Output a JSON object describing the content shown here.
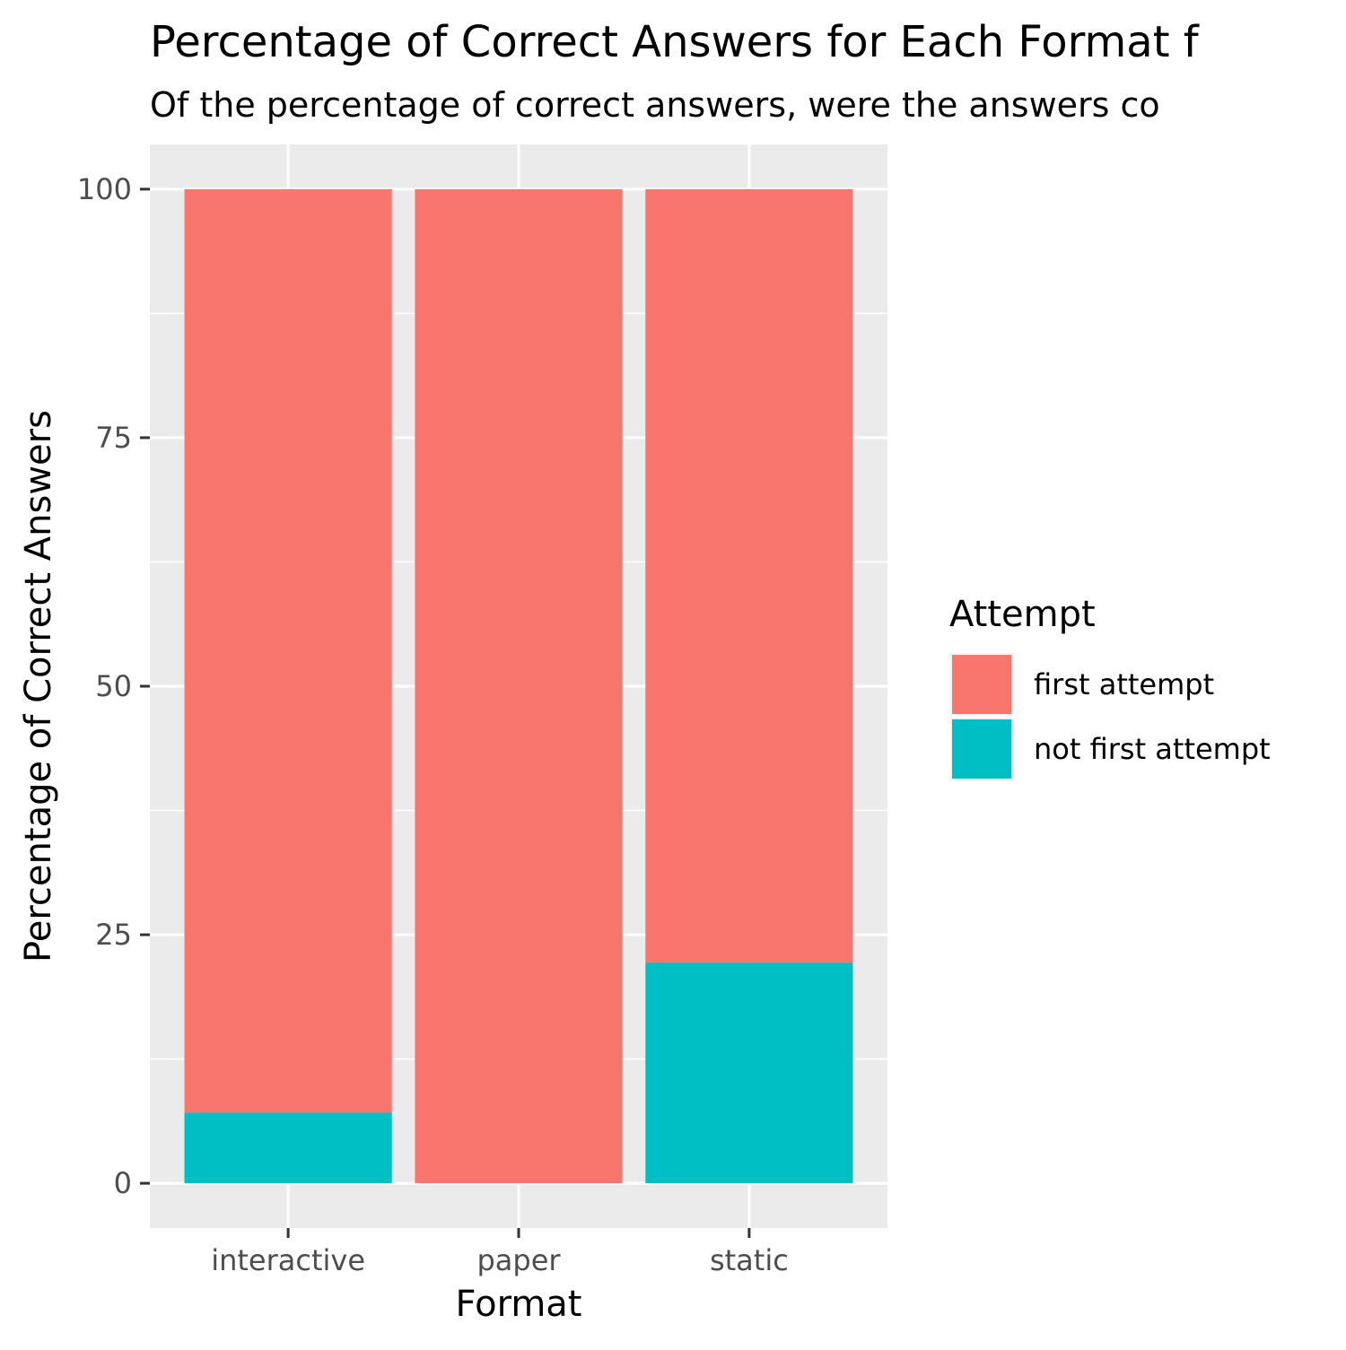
{
  "chart_data": {
    "type": "bar",
    "stacked": true,
    "title": "Percentage of Correct Answers for Each Format f",
    "subtitle": "Of the percentage of correct answers, were the answers co",
    "xlabel": "Format",
    "ylabel": "Percentage of Correct Answers",
    "categories": [
      "interactive",
      "paper",
      "static"
    ],
    "series": [
      {
        "name": "first attempt",
        "color": "#F8766D",
        "values": [
          92.9,
          100,
          77.8
        ]
      },
      {
        "name": "not first attempt",
        "color": "#00BFC4",
        "values": [
          7.1,
          0,
          22.2
        ]
      }
    ],
    "ylim": [
      -4.5,
      104.5
    ],
    "yticks": [
      0,
      25,
      50,
      75,
      100
    ],
    "ytick_labels": [
      "0",
      "25",
      "50",
      "75",
      "100"
    ],
    "grid": true,
    "legend": {
      "title": "Attempt",
      "position": "right"
    }
  }
}
